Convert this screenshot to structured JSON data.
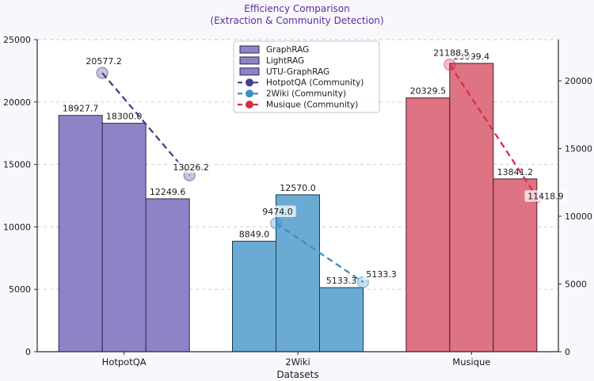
{
  "title": {
    "line1": "Efficiency Comparison",
    "line2": "(Extraction & Community Detection)",
    "color": "#5b2c9f"
  },
  "chart_data": {
    "type": "bar",
    "title": "Efficiency Comparison (Extraction & Community Detection)",
    "xlabel": "Datasets",
    "ylabel": "",
    "categories": [
      "HotpotQA",
      "2Wiki",
      "Musique"
    ],
    "bar_series_names": [
      "GraphRAG",
      "LightRAG",
      "UTU-GraphRAG"
    ],
    "bar_groups": [
      {
        "category": "HotpotQA",
        "color": "#8c84c6",
        "edge": "#2e2a4d",
        "values": [
          18927.7,
          18300.0,
          12249.6
        ]
      },
      {
        "category": "2Wiki",
        "color": "#6babd3",
        "edge": "#173d52",
        "values": [
          8849.0,
          12570.0,
          5133.3
        ]
      },
      {
        "category": "Musique",
        "color": "#dd7383",
        "edge": "#4d1f28",
        "values": [
          20329.5,
          23099.4,
          13841.2
        ]
      }
    ],
    "line_series": [
      {
        "name": "HotpotQA (Community)",
        "color": "#483d8b",
        "values": [
          20577.2,
          13026.2
        ]
      },
      {
        "name": "2Wiki (Community)",
        "color": "#3a90c5",
        "values": [
          9474.0,
          5133.3
        ]
      },
      {
        "name": "Musique (Community)",
        "color": "#d62e4c",
        "values": [
          21188.5,
          11418.9
        ]
      }
    ],
    "left_axis": {
      "ticks": [
        0,
        5000,
        10000,
        15000,
        20000,
        25000
      ],
      "min": 0,
      "max": 25000
    },
    "right_axis": {
      "ticks": [
        0,
        5000,
        10000,
        15000,
        20000
      ],
      "min": 0,
      "max": 23040
    },
    "grid": true,
    "legend_position": "upper-center-left",
    "legend": [
      {
        "label": "GraphRAG",
        "type": "bar",
        "color": "#8c84c6",
        "edge": "#2e2a4d"
      },
      {
        "label": "LightRAG",
        "type": "bar",
        "color": "#8c84c6",
        "edge": "#2e2a4d"
      },
      {
        "label": "UTU-GraphRAG",
        "type": "bar",
        "color": "#8c84c6",
        "edge": "#2e2a4d"
      },
      {
        "label": "HotpotQA (Community)",
        "type": "line",
        "color": "#483d8b"
      },
      {
        "label": "2Wiki (Community)",
        "type": "line",
        "color": "#3a90c5"
      },
      {
        "label": "Musique (Community)",
        "type": "line",
        "color": "#d62e4c"
      }
    ]
  }
}
